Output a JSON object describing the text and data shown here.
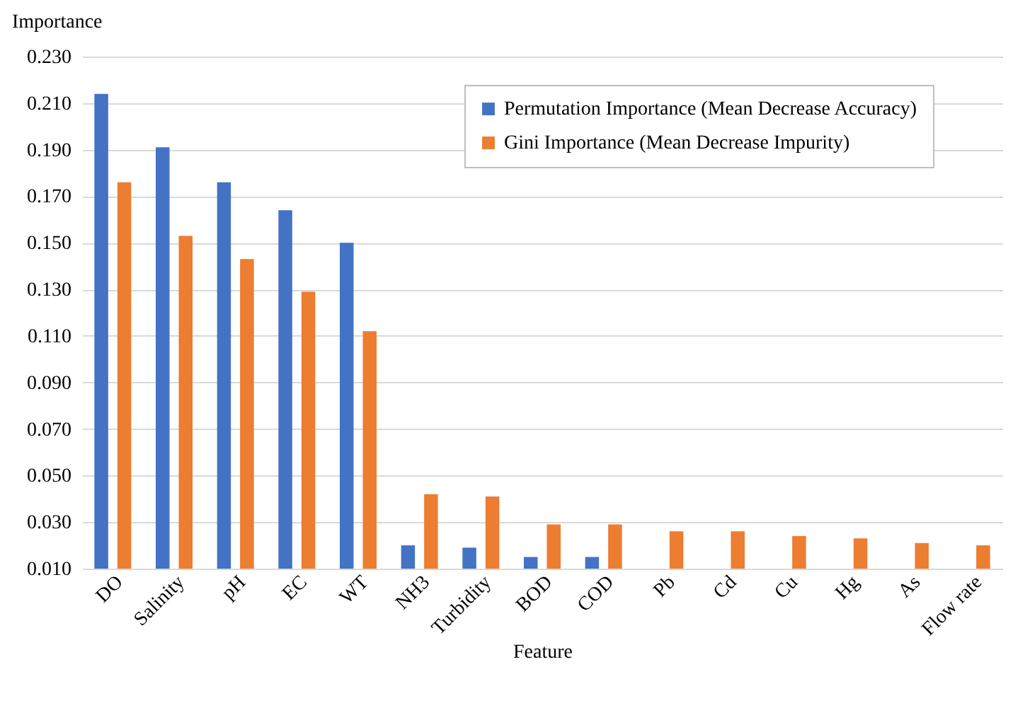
{
  "chart_data": {
    "type": "bar",
    "xlabel": "Feature",
    "ylabel": "Importance",
    "categories": [
      "DO",
      "Salinity",
      "pH",
      "EC",
      "WT",
      "NH3",
      "Turbidity",
      "BOD",
      "COD",
      "Pb",
      "Cd",
      "Cu",
      "Hg",
      "As",
      "Flow rate"
    ],
    "series": [
      {
        "name": "Permutation Importance (Mean Decrease Accuracy)",
        "color": "#4472c4",
        "values": [
          0.214,
          0.191,
          0.176,
          0.164,
          0.15,
          0.02,
          0.019,
          0.015,
          0.015,
          null,
          null,
          null,
          null,
          null,
          null
        ]
      },
      {
        "name": "Gini Importance (Mean Decrease Impurity)",
        "color": "#ed7d31",
        "values": [
          0.176,
          0.153,
          0.143,
          0.129,
          0.112,
          0.042,
          0.041,
          0.029,
          0.029,
          0.026,
          0.026,
          0.024,
          0.023,
          0.021,
          0.02
        ]
      }
    ],
    "ylim": [
      0.01,
      0.23
    ],
    "yticks": [
      {
        "value": 0.01,
        "label": "0.010"
      },
      {
        "value": 0.03,
        "label": "0.030"
      },
      {
        "value": 0.05,
        "label": "0.050"
      },
      {
        "value": 0.07,
        "label": "0.070"
      },
      {
        "value": 0.09,
        "label": "0.090"
      },
      {
        "value": 0.11,
        "label": "0.110"
      },
      {
        "value": 0.13,
        "label": "0.130"
      },
      {
        "value": 0.15,
        "label": "0.150"
      },
      {
        "value": 0.17,
        "label": "0.170"
      },
      {
        "value": 0.19,
        "label": "0.190"
      },
      {
        "value": 0.21,
        "label": "0.210"
      },
      {
        "value": 0.23,
        "label": "0.230"
      }
    ],
    "grid": "y",
    "legend": "top right"
  }
}
